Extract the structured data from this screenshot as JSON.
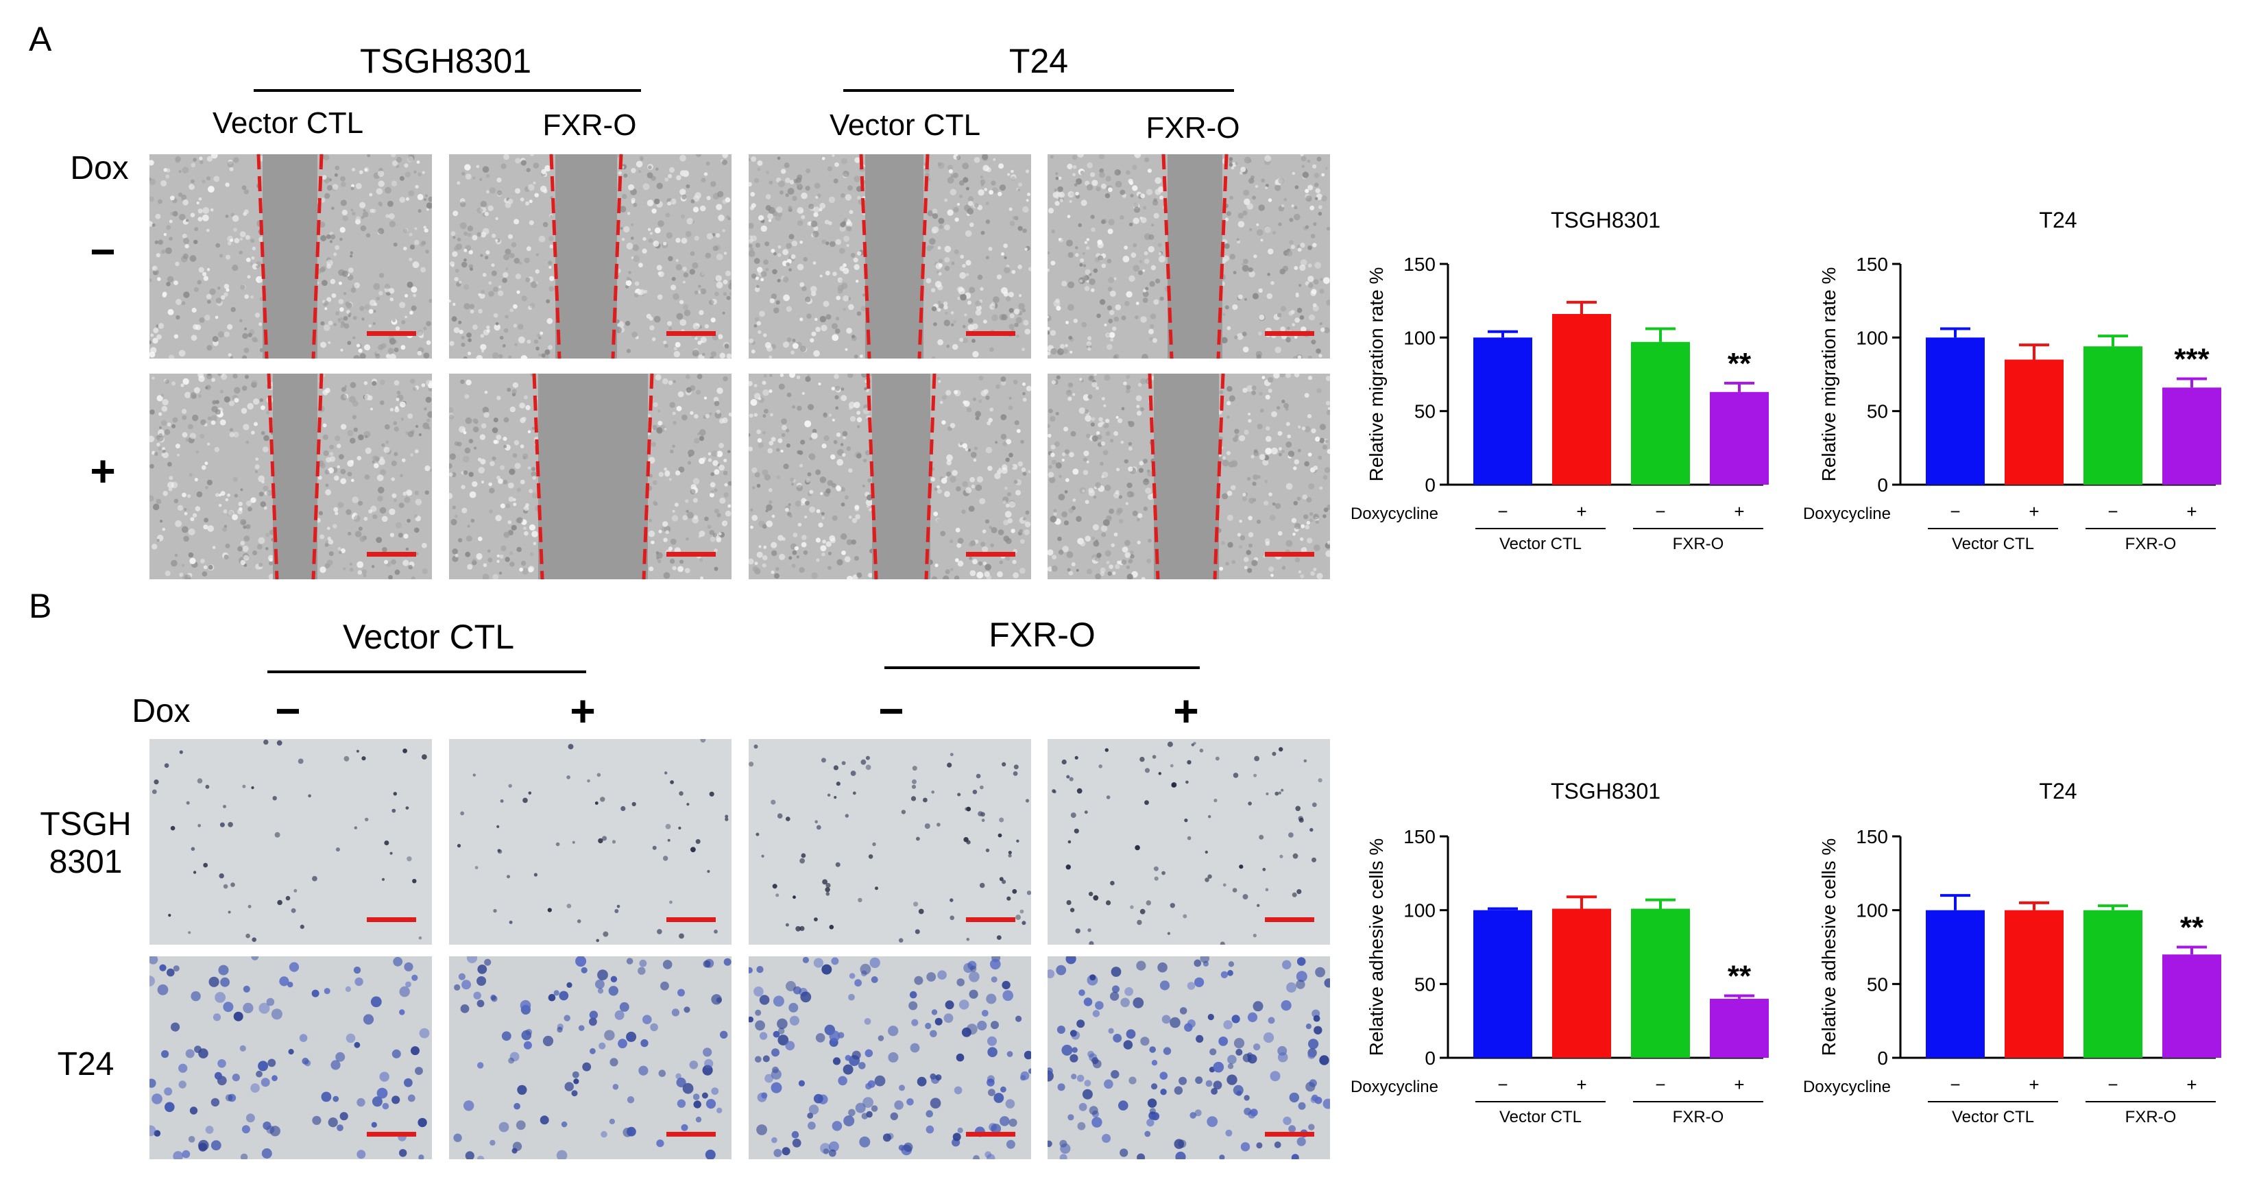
{
  "panelA": {
    "letter": "A",
    "groups": [
      {
        "label": "TSGH8301"
      },
      {
        "label": "T24"
      }
    ],
    "columns": [
      "Vector CTL",
      "FXR-O",
      "Vector CTL",
      "FXR-O"
    ],
    "dox_label": "Dox",
    "rows": [
      "−",
      "+"
    ]
  },
  "panelB": {
    "letter": "B",
    "groups": [
      {
        "label": "Vector CTL"
      },
      {
        "label": "FXR-O"
      }
    ],
    "dox_label": "Dox",
    "dox_signs": [
      "−",
      "+",
      "−",
      "+"
    ],
    "rows": [
      "TSGH\n8301",
      "T24"
    ]
  },
  "colors": {
    "blue": "#0a10f5",
    "red": "#f50f0f",
    "green": "#10c71d",
    "purple": "#a617e6",
    "scale_bar": "#e01b1b"
  },
  "chart_data": [
    {
      "type": "bar",
      "title": "TSGH8301",
      "ylabel": "Relative migration rate %",
      "ylim": [
        0,
        150
      ],
      "yticks": [
        0,
        50,
        100,
        150
      ],
      "row_label": "Doxycycline",
      "x": [
        "−",
        "+",
        "−",
        "+"
      ],
      "groups": [
        "Vector CTL",
        "FXR-O"
      ],
      "values": [
        100,
        116,
        97,
        63
      ],
      "errors": [
        4,
        8,
        9,
        6
      ],
      "colors": [
        "#0a10f5",
        "#f50f0f",
        "#10c71d",
        "#a617e6"
      ],
      "annotations": [
        "",
        "",
        "",
        "**"
      ]
    },
    {
      "type": "bar",
      "title": "T24",
      "ylabel": "Relative migration rate %",
      "ylim": [
        0,
        150
      ],
      "yticks": [
        0,
        50,
        100,
        150
      ],
      "row_label": "Doxycycline",
      "x": [
        "−",
        "+",
        "−",
        "+"
      ],
      "groups": [
        "Vector CTL",
        "FXR-O"
      ],
      "values": [
        100,
        85,
        94,
        66
      ],
      "errors": [
        6,
        10,
        7,
        6
      ],
      "colors": [
        "#0a10f5",
        "#f50f0f",
        "#10c71d",
        "#a617e6"
      ],
      "annotations": [
        "",
        "",
        "",
        "***"
      ]
    },
    {
      "type": "bar",
      "title": "TSGH8301",
      "ylabel": "Relative adhesive cells %",
      "ylim": [
        0,
        150
      ],
      "yticks": [
        0,
        50,
        100,
        150
      ],
      "row_label": "Doxycycline",
      "x": [
        "−",
        "+",
        "−",
        "+"
      ],
      "groups": [
        "Vector CTL",
        "FXR-O"
      ],
      "values": [
        100,
        101,
        101,
        40
      ],
      "errors": [
        1,
        8,
        6,
        2
      ],
      "colors": [
        "#0a10f5",
        "#f50f0f",
        "#10c71d",
        "#a617e6"
      ],
      "annotations": [
        "",
        "",
        "",
        "**"
      ]
    },
    {
      "type": "bar",
      "title": "T24",
      "ylabel": "Relative adhesive cells %",
      "ylim": [
        0,
        150
      ],
      "yticks": [
        0,
        50,
        100,
        150
      ],
      "row_label": "Doxycycline",
      "x": [
        "−",
        "+",
        "−",
        "+"
      ],
      "groups": [
        "Vector CTL",
        "FXR-O"
      ],
      "values": [
        100,
        100,
        100,
        70
      ],
      "errors": [
        10,
        5,
        3,
        5
      ],
      "colors": [
        "#0a10f5",
        "#f50f0f",
        "#10c71d",
        "#a617e6"
      ],
      "annotations": [
        "",
        "",
        "",
        "**"
      ]
    }
  ]
}
